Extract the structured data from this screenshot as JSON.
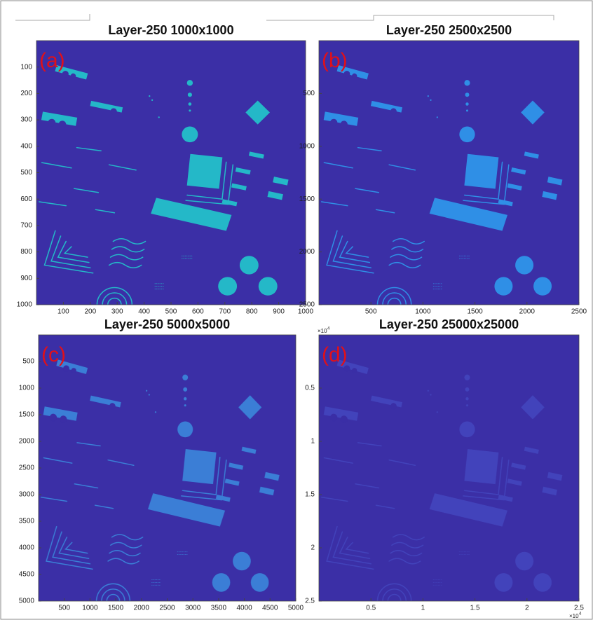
{
  "panels": [
    {
      "title": "Layer-250 1000x1000",
      "tag": "(a)",
      "xlim": [
        0,
        1000
      ],
      "ylim": [
        0,
        1000
      ],
      "xticks": [
        100,
        200,
        300,
        400,
        500,
        600,
        700,
        800,
        900,
        1000
      ],
      "yticks": [
        100,
        200,
        300,
        400,
        500,
        600,
        700,
        800,
        900,
        1000
      ]
    },
    {
      "title": "Layer-250 2500x2500",
      "tag": "(b)",
      "xlim": [
        0,
        2500
      ],
      "ylim": [
        0,
        2500
      ],
      "xticks": [
        500,
        1000,
        1500,
        2000,
        2500
      ],
      "yticks": [
        500,
        1000,
        1500,
        2000,
        2500
      ]
    },
    {
      "title": "Layer-250 5000x5000",
      "tag": "(c)",
      "xlim": [
        0,
        5000
      ],
      "ylim": [
        0,
        5000
      ],
      "xticks": [
        500,
        1000,
        1500,
        2000,
        2500,
        3000,
        3500,
        4000,
        4500,
        5000
      ],
      "yticks": [
        500,
        1000,
        1500,
        2000,
        2500,
        3000,
        3500,
        4000,
        4500,
        5000
      ]
    },
    {
      "title": "Layer-250 25000x25000",
      "tag": "(d)",
      "xlim": [
        0,
        2.5
      ],
      "ylim": [
        0,
        2.5
      ],
      "xticks": [
        0.5,
        1,
        1.5,
        2,
        2.5
      ],
      "yticks": [
        0.5,
        1,
        1.5,
        2,
        2.5
      ],
      "multiplier_base": "×10",
      "multiplier_power": "4"
    }
  ]
}
